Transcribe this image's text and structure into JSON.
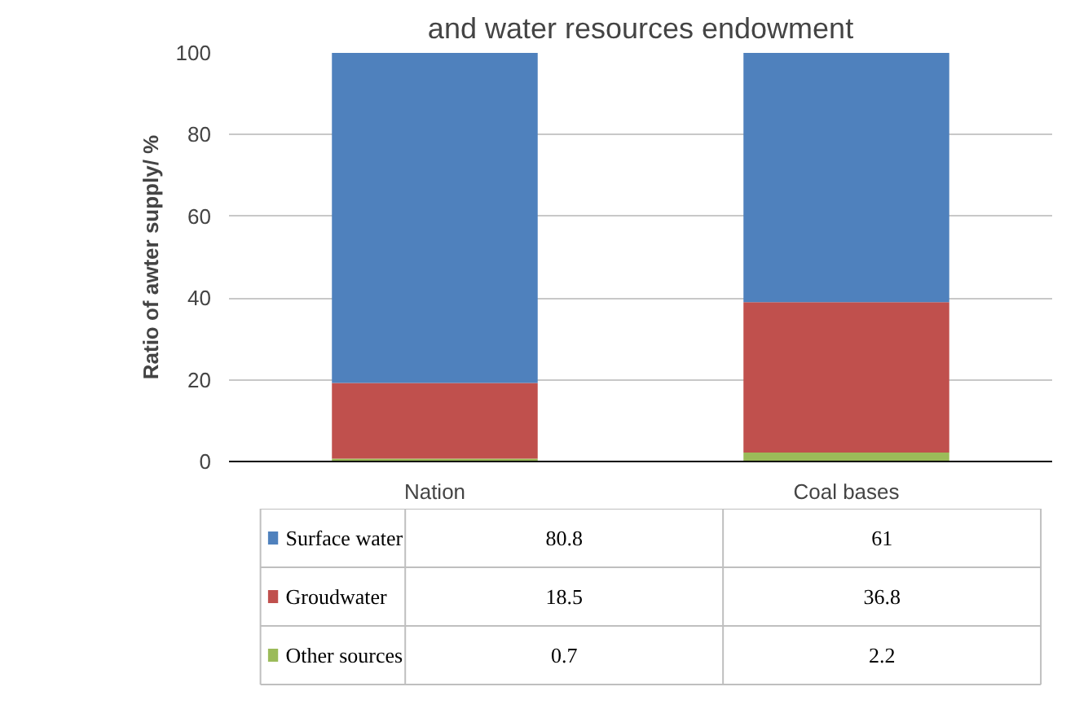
{
  "chart_data": {
    "type": "bar",
    "title": "and water resources endowment",
    "ylabel": "Ratio of awter supply/ %",
    "categories": [
      "Nation",
      "Coal bases"
    ],
    "stacked": true,
    "series": [
      {
        "name": "Other sources",
        "color": "#9bbb59",
        "values": [
          0.7,
          2.2
        ]
      },
      {
        "name": "Groudwater",
        "color": "#c0504d",
        "values": [
          18.5,
          36.8
        ]
      },
      {
        "name": "Surface water",
        "color": "#4f81bd",
        "values": [
          80.8,
          61
        ]
      }
    ],
    "ylim": [
      0,
      100
    ],
    "yticks": [
      0,
      20,
      40,
      60,
      80,
      100
    ],
    "grid": "y",
    "legend": "bottom",
    "data_labels": true
  }
}
